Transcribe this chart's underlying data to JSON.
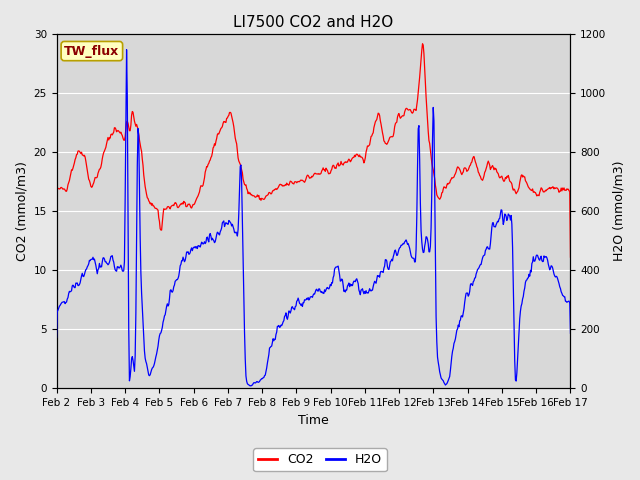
{
  "title": "LI7500 CO2 and H2O",
  "xlabel": "Time",
  "ylabel_left": "CO2 (mmol/m3)",
  "ylabel_right": "H2O (mmol/m3)",
  "site_label": "TW_flux",
  "xlim_days": [
    2,
    17
  ],
  "ylim_left": [
    0,
    30
  ],
  "ylim_right": [
    0,
    1200
  ],
  "yticks_left": [
    0,
    5,
    10,
    15,
    20,
    25,
    30
  ],
  "yticks_right": [
    0,
    200,
    400,
    600,
    800,
    1000,
    1200
  ],
  "xtick_labels": [
    "Feb 2",
    "Feb 3",
    "Feb 4",
    "Feb 5",
    "Feb 6",
    "Feb 7",
    "Feb 8",
    "Feb 9",
    "Feb 10",
    "Feb 11",
    "Feb 12",
    "Feb 13",
    "Feb 14",
    "Feb 15",
    "Feb 16",
    "Feb 17"
  ],
  "co2_color": "#FF0000",
  "h2o_color": "#0000FF",
  "bg_color": "#E8E8E8",
  "plot_bg_color": "#D8D8D8",
  "site_label_bg": "#FFFFC0",
  "site_label_border": "#B8A000",
  "linewidth": 0.9,
  "title_fontsize": 11,
  "axis_fontsize": 9,
  "tick_fontsize": 7.5,
  "legend_fontsize": 9
}
